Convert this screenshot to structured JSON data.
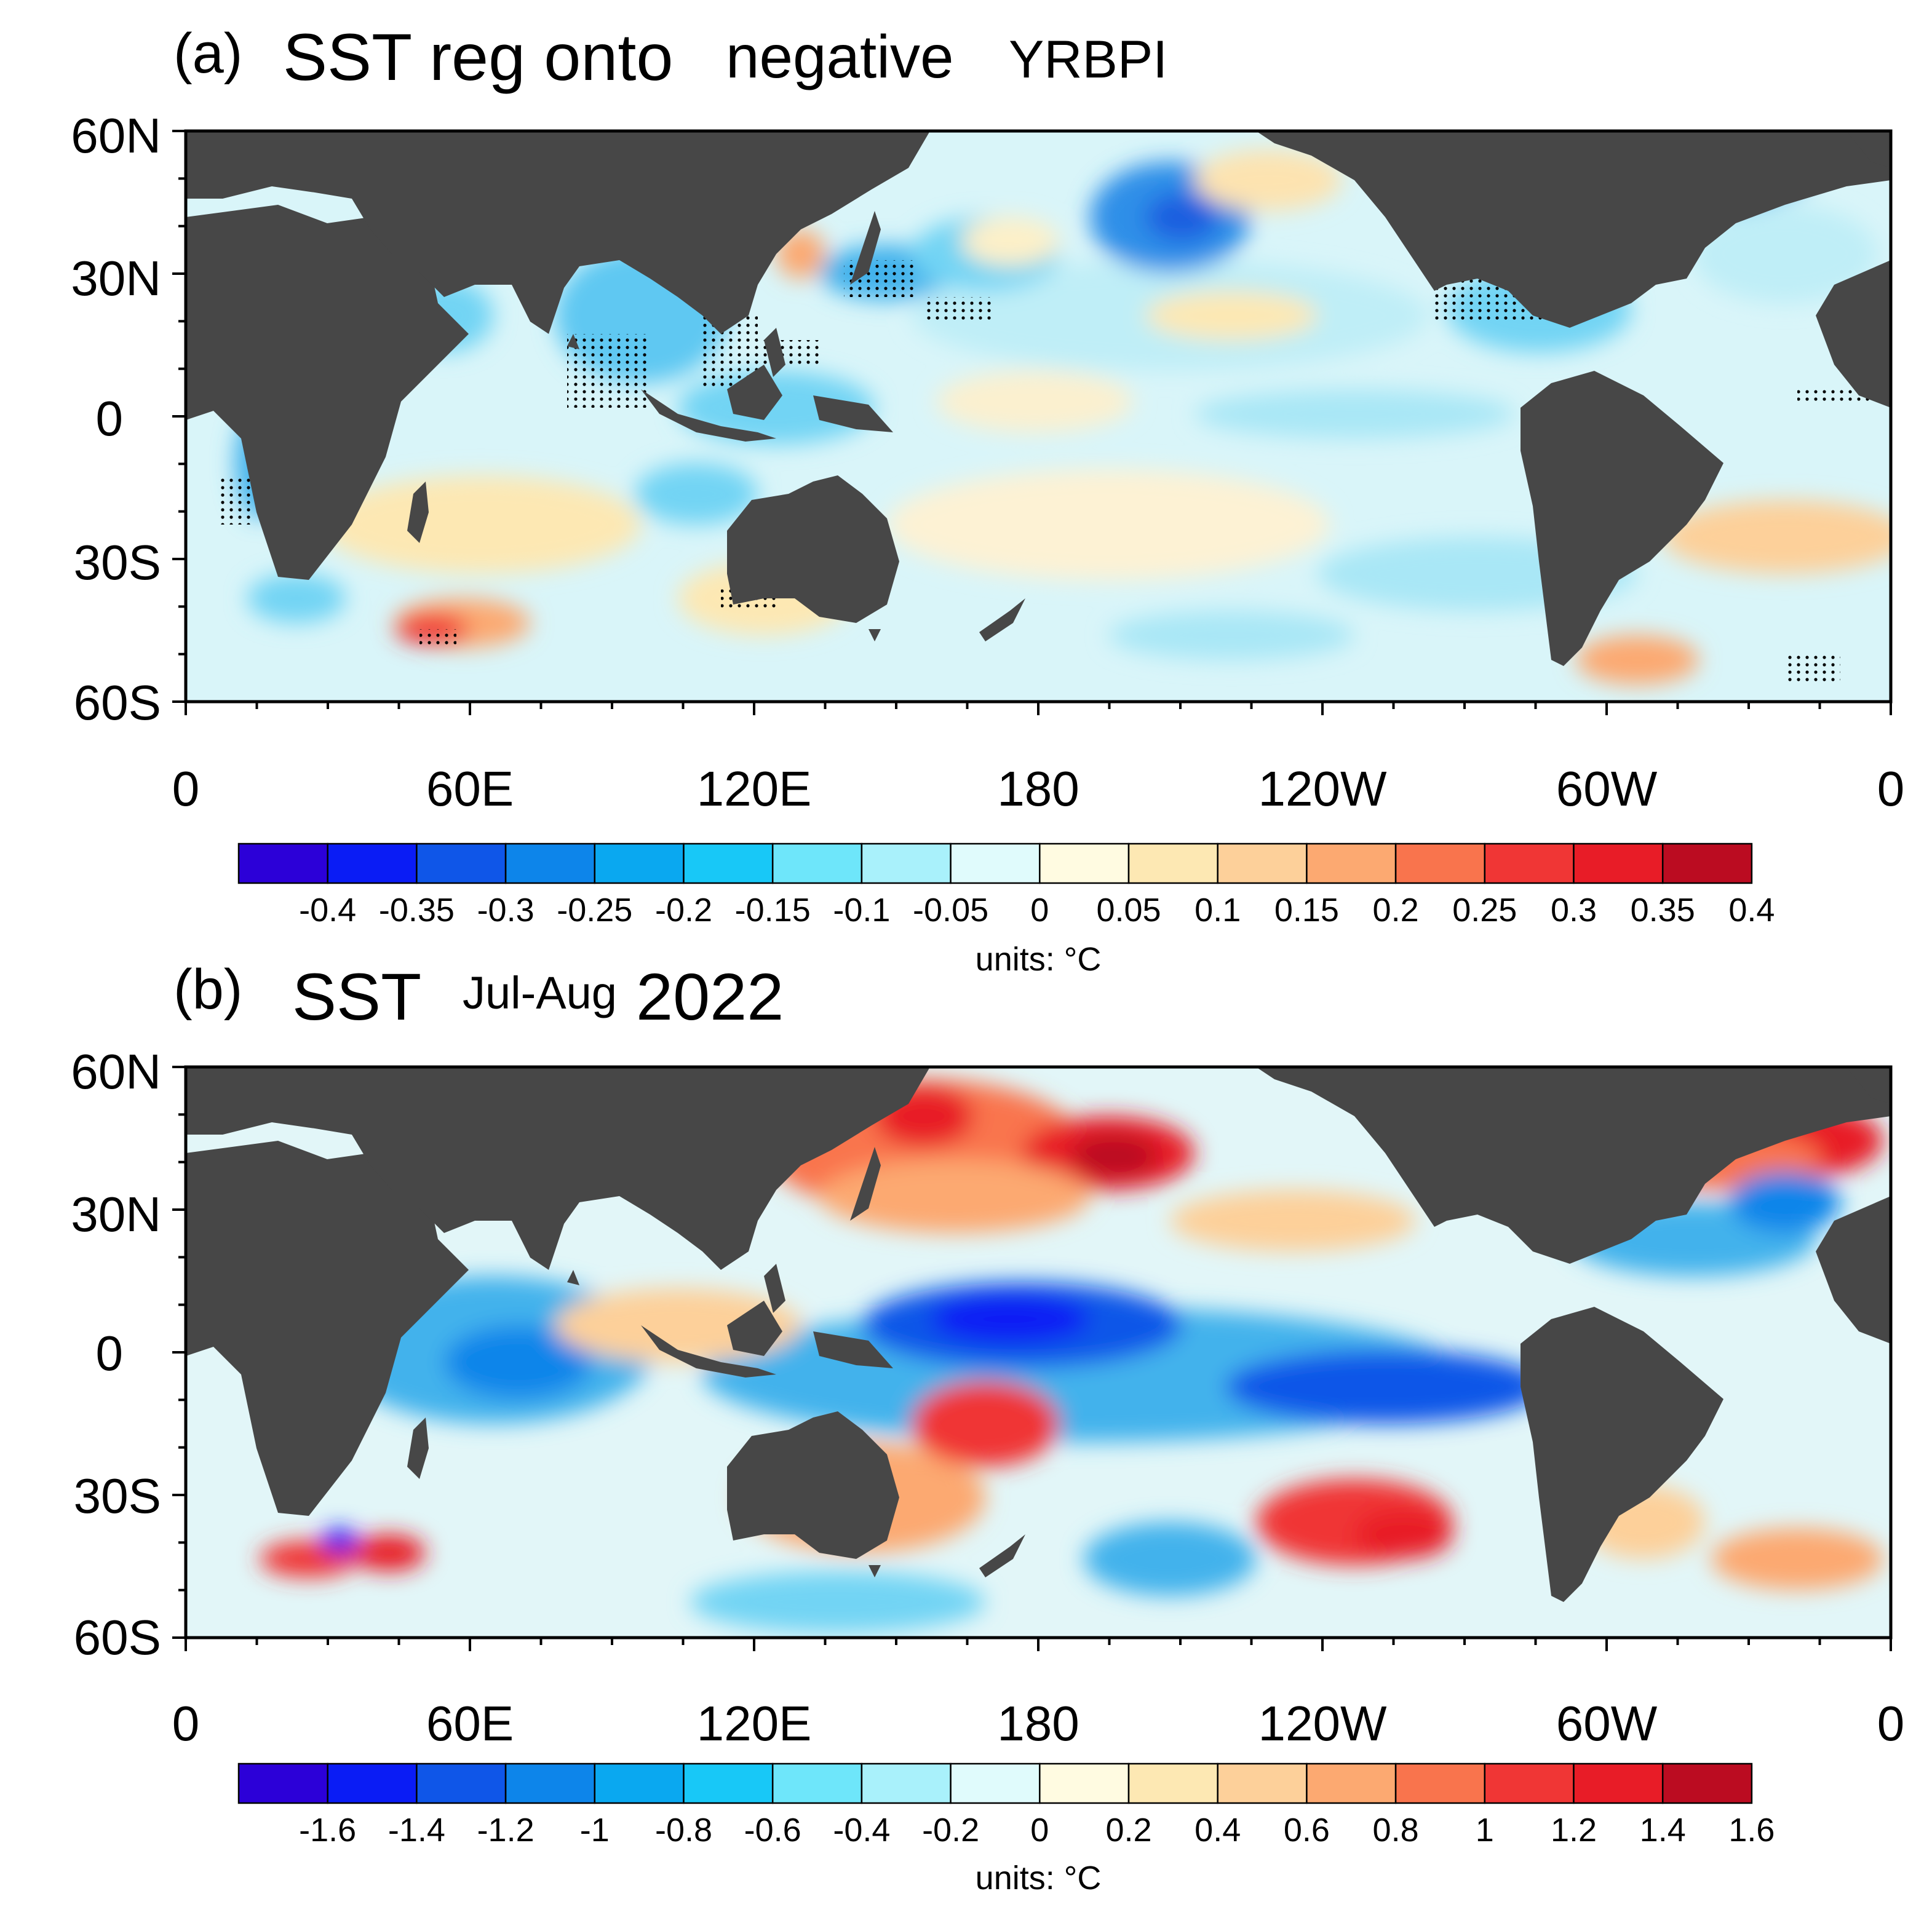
{
  "panels": [
    {
      "id": "a",
      "label": "(a)",
      "title_main": "SST reg onto",
      "title_mid": "negative",
      "title_sub": "YRBPI",
      "stippling": "dots mark significant regions",
      "colorbar": {
        "levels": [
          "-0.4",
          "-0.35",
          "-0.3",
          "-0.25",
          "-0.2",
          "-0.15",
          "-0.1",
          "-0.05",
          "0",
          "0.05",
          "0.1",
          "0.15",
          "0.2",
          "0.25",
          "0.3",
          "0.35",
          "0.4"
        ],
        "units": "units: °C"
      }
    },
    {
      "id": "b",
      "label": "(b)",
      "title_main": "SST",
      "title_mid": "Jul-Aug",
      "title_sub": "2022",
      "colorbar": {
        "levels": [
          "-1.6",
          "-1.4",
          "-1.2",
          "-1",
          "-0.8",
          "-0.6",
          "-0.4",
          "-0.2",
          "0",
          "0.2",
          "0.4",
          "0.6",
          "0.8",
          "1",
          "1.2",
          "1.4",
          "1.6"
        ],
        "units": "units: °C"
      }
    }
  ],
  "axes": {
    "lat_labels": [
      "60N",
      "30N",
      "0",
      "30S",
      "60S"
    ],
    "lon_labels": [
      "0",
      "60E",
      "120E",
      "180",
      "120W",
      "60W",
      "0"
    ]
  },
  "palette": [
    "#2c00d8",
    "#0a1cf5",
    "#0f56e8",
    "#0d85ea",
    "#0aa8f0",
    "#18c8f7",
    "#6ee6fa",
    "#a9f1fb",
    "#e0fbfc",
    "#fffbe1",
    "#fde8b3",
    "#fdd09a",
    "#fca971",
    "#f9744d",
    "#f03635",
    "#e81c27",
    "#bb0c21"
  ],
  "colors": {
    "land": "#474747",
    "ocean_base": "#e2f7fa",
    "frame": "#000000"
  }
}
